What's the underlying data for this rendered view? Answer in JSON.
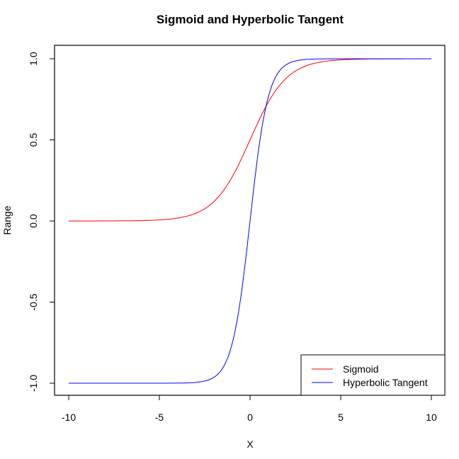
{
  "chart_data": {
    "type": "line",
    "title": "Sigmoid and Hyperbolic Tangent",
    "xlabel": "X",
    "ylabel": "Range",
    "xlim": [
      -10,
      10
    ],
    "ylim": [
      -1,
      1
    ],
    "x_ticks": [
      "-10",
      "-5",
      "0",
      "5",
      "10"
    ],
    "y_ticks": [
      "-1.0",
      "-0.5",
      "0.0",
      "0.5",
      "1.0"
    ],
    "grid": false,
    "legend_position": "bottomright",
    "series": [
      {
        "name": "Sigmoid",
        "color": "#ff0000",
        "function": "1/(1+exp(-x))",
        "x": [
          -10,
          -8,
          -6,
          -4,
          -3,
          -2,
          -1,
          0,
          1,
          2,
          3,
          4,
          6,
          8,
          10
        ],
        "values": [
          4.54e-05,
          0.000335,
          0.00247,
          0.018,
          0.047,
          0.119,
          0.269,
          0.5,
          0.731,
          0.881,
          0.953,
          0.982,
          0.9975,
          0.9997,
          0.99995
        ]
      },
      {
        "name": "Hyperbolic Tangent",
        "color": "#0000ff",
        "function": "tanh(x)",
        "x": [
          -10,
          -8,
          -6,
          -4,
          -3,
          -2,
          -1,
          0,
          1,
          2,
          3,
          4,
          6,
          8,
          10
        ],
        "values": [
          -1.0,
          -1.0,
          -0.99999,
          -0.9993,
          -0.995,
          -0.964,
          -0.762,
          0.0,
          0.762,
          0.964,
          0.995,
          0.9993,
          0.99999,
          1.0,
          1.0
        ]
      }
    ]
  },
  "legend": {
    "items": [
      {
        "label": "Sigmoid"
      },
      {
        "label": "Hyperbolic Tangent"
      }
    ]
  }
}
